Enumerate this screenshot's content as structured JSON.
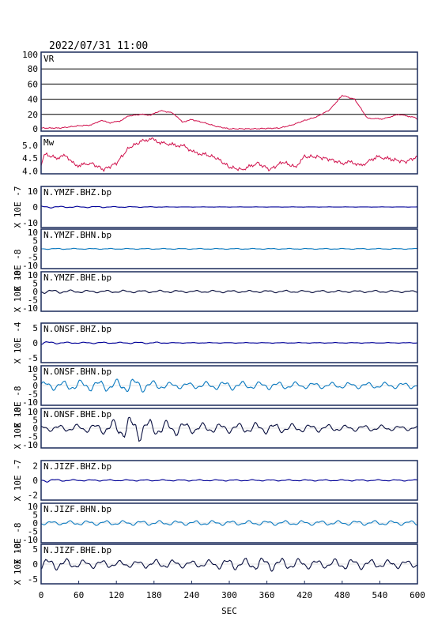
{
  "header": {
    "timestamp": "2022/07/31 11:00"
  },
  "colors": {
    "frame": "#1a2a5a",
    "vr_mw": "#d0104c",
    "bhz": "#000099",
    "bhn": "#0c7ac0",
    "bhe": "#0a1040",
    "grid": "#000000"
  },
  "chart_data": {
    "type": "line",
    "x_axis": {
      "label": "SEC",
      "ticks": [
        "0",
        "60",
        "120",
        "180",
        "240",
        "300",
        "360",
        "420",
        "480",
        "540",
        "600"
      ],
      "lim": [
        0,
        600
      ]
    },
    "panels": [
      {
        "id": "vr",
        "label": "VR",
        "yticks": [
          "100",
          "80",
          "60",
          "40",
          "20",
          "0"
        ],
        "ylim": [
          0,
          100
        ],
        "grid": true,
        "color_key": "vr_mw",
        "points": [
          [
            0,
            2
          ],
          [
            30,
            2
          ],
          [
            60,
            5
          ],
          [
            80,
            6
          ],
          [
            95,
            12
          ],
          [
            110,
            9
          ],
          [
            125,
            11
          ],
          [
            140,
            18
          ],
          [
            160,
            20
          ],
          [
            175,
            19
          ],
          [
            190,
            25
          ],
          [
            210,
            22
          ],
          [
            225,
            10
          ],
          [
            240,
            13
          ],
          [
            260,
            9
          ],
          [
            280,
            4
          ],
          [
            300,
            1
          ],
          [
            340,
            1
          ],
          [
            380,
            2
          ],
          [
            400,
            6
          ],
          [
            420,
            12
          ],
          [
            440,
            17
          ],
          [
            460,
            26
          ],
          [
            480,
            45
          ],
          [
            500,
            40
          ],
          [
            520,
            15
          ],
          [
            545,
            14
          ],
          [
            570,
            20
          ],
          [
            595,
            16
          ],
          [
            600,
            13
          ]
        ]
      },
      {
        "id": "mw",
        "label": "Mw",
        "yticks": [
          "5.0",
          "4.5",
          "4.0"
        ],
        "ylim": [
          3.95,
          5.3
        ],
        "grid": false,
        "color_key": "vr_mw",
        "points": [
          [
            0,
            4.2
          ],
          [
            5,
            4.65
          ],
          [
            25,
            4.5
          ],
          [
            40,
            4.6
          ],
          [
            55,
            4.2
          ],
          [
            80,
            4.3
          ],
          [
            100,
            4.05
          ],
          [
            120,
            4.3
          ],
          [
            140,
            4.9
          ],
          [
            160,
            5.15
          ],
          [
            175,
            5.25
          ],
          [
            190,
            5.1
          ],
          [
            215,
            5.0
          ],
          [
            230,
            4.95
          ],
          [
            245,
            4.7
          ],
          [
            260,
            4.65
          ],
          [
            280,
            4.5
          ],
          [
            300,
            4.15
          ],
          [
            320,
            4.05
          ],
          [
            345,
            4.3
          ],
          [
            365,
            4.05
          ],
          [
            385,
            4.35
          ],
          [
            405,
            4.15
          ],
          [
            420,
            4.55
          ],
          [
            440,
            4.55
          ],
          [
            460,
            4.45
          ],
          [
            480,
            4.3
          ],
          [
            495,
            4.35
          ],
          [
            510,
            4.2
          ],
          [
            535,
            4.55
          ],
          [
            560,
            4.45
          ],
          [
            580,
            4.35
          ],
          [
            600,
            4.55
          ]
        ]
      }
    ],
    "traces": [
      {
        "id": "ymzf-bhz",
        "label": "N.YMZF.BHZ.bp",
        "scale": "X 10E -7",
        "yticks": [
          "10",
          "0",
          "-10"
        ],
        "ylim": [
          -12,
          12
        ],
        "color_key": "bhz",
        "amps": [
          0.8,
          0.5,
          0.4,
          0.5,
          0.3,
          0.3,
          0.2,
          0.1,
          0.1,
          0.1,
          0.1,
          0.1,
          0.1,
          0.1,
          0.1,
          0.1,
          0.1,
          0.1,
          0.1,
          0.1,
          0.1
        ]
      },
      {
        "id": "ymzf-bhn",
        "label": "N.YMZF.BHN.bp",
        "scale": "X 10E -8",
        "yticks": [
          "10",
          "5",
          "0",
          "-5",
          "-10"
        ],
        "ylim": [
          -11,
          11
        ],
        "color_key": "bhn",
        "amps": [
          0.3,
          0.4,
          0.3,
          0.3,
          0.3,
          0.3,
          0.3,
          0.3,
          0.3,
          0.3,
          0.3,
          0.3,
          0.3,
          0.3,
          0.3,
          0.3,
          0.3,
          0.3,
          0.3,
          0.3,
          0.3
        ]
      },
      {
        "id": "ymzf-bhe",
        "label": "N.YMZF.BHE.bp",
        "scale": "X 10E -8",
        "yticks": [
          "10",
          "5",
          "0",
          "-5",
          "-10"
        ],
        "ylim": [
          -11,
          11
        ],
        "color_key": "bhe",
        "amps": [
          1.2,
          1.1,
          0.9,
          0.8,
          0.9,
          0.8,
          0.8,
          0.8,
          0.7,
          0.8,
          0.8,
          0.7,
          0.8,
          0.8,
          0.7,
          0.8,
          0.7,
          0.7,
          0.8,
          0.7,
          0.6
        ]
      },
      {
        "id": "onsf-bhz",
        "label": "N.ONSF.BHZ.bp",
        "scale": "X 10E -4",
        "yticks": [
          "5",
          "0",
          "-5"
        ],
        "ylim": [
          -6,
          6
        ],
        "color_key": "bhz",
        "amps": [
          0.6,
          0.3,
          0.2,
          0.3,
          0.2,
          0.3,
          0.3,
          0.1,
          0.1,
          0.1,
          0.1,
          0.1,
          0.1,
          0.1,
          0.1,
          0.1,
          0.1,
          0.1,
          0.1,
          0.1,
          0.1
        ]
      },
      {
        "id": "onsf-bhn",
        "label": "N.ONSF.BHN.bp",
        "scale": "X 10E -8",
        "yticks": [
          "10",
          "5",
          "0",
          "-5",
          "-10"
        ],
        "ylim": [
          -11,
          11
        ],
        "color_key": "bhn",
        "amps": [
          2.5,
          3.0,
          3.5,
          3.5,
          4.0,
          5.0,
          3.0,
          2.0,
          2.0,
          2.5,
          3.0,
          2.5,
          2.5,
          2.5,
          2.0,
          2.0,
          2.0,
          2.0,
          2.0,
          2.0,
          2.0
        ]
      },
      {
        "id": "onsf-bhe",
        "label": "N.ONSF.BHE.bp",
        "scale": "X 10E -8",
        "yticks": [
          "10",
          "5",
          "0",
          "-5",
          "-10"
        ],
        "ylim": [
          -11,
          11
        ],
        "color_key": "bhe",
        "amps": [
          2.0,
          2.0,
          2.5,
          3.0,
          6.0,
          9.0,
          5.0,
          5.0,
          3.5,
          3.0,
          3.0,
          3.5,
          3.5,
          3.0,
          2.5,
          2.5,
          2.0,
          2.0,
          2.0,
          1.5,
          1.5
        ]
      },
      {
        "id": "jizf-bhz",
        "label": "N.JIZF.BHZ.bp",
        "scale": "X 10E -7",
        "yticks": [
          "2",
          "0",
          "-2"
        ],
        "ylim": [
          -2.5,
          2.5
        ],
        "color_key": "bhz",
        "amps": [
          0.3,
          0.15,
          0.1,
          0.1,
          0.1,
          0.1,
          0.1,
          0.1,
          0.1,
          0.1,
          0.1,
          0.1,
          0.1,
          0.1,
          0.1,
          0.1,
          0.1,
          0.1,
          0.1,
          0.1,
          0.1
        ]
      },
      {
        "id": "jizf-bhn",
        "label": "N.JIZF.BHN.bp",
        "scale": "X 10E -8",
        "yticks": [
          "10",
          "5",
          "0",
          "-5",
          "-10"
        ],
        "ylim": [
          -11,
          11
        ],
        "color_key": "bhn",
        "amps": [
          1.2,
          1.2,
          1.5,
          1.5,
          1.5,
          1.5,
          1.5,
          1.5,
          1.5,
          1.5,
          1.5,
          1.5,
          1.5,
          1.5,
          1.5,
          1.5,
          1.5,
          1.5,
          1.5,
          1.5,
          1.5
        ]
      },
      {
        "id": "jizf-bhe",
        "label": "N.JIZF.BHE.bp",
        "scale": "X 10E -8",
        "yticks": [
          "5",
          "0",
          "-5"
        ],
        "ylim": [
          -6,
          6
        ],
        "color_key": "bhe",
        "amps": [
          2.0,
          2.0,
          1.5,
          1.5,
          1.2,
          1.2,
          1.5,
          1.5,
          1.2,
          1.5,
          2.0,
          2.0,
          2.5,
          2.0,
          1.8,
          1.5,
          2.0,
          1.8,
          1.5,
          1.5,
          1.2
        ]
      }
    ]
  }
}
